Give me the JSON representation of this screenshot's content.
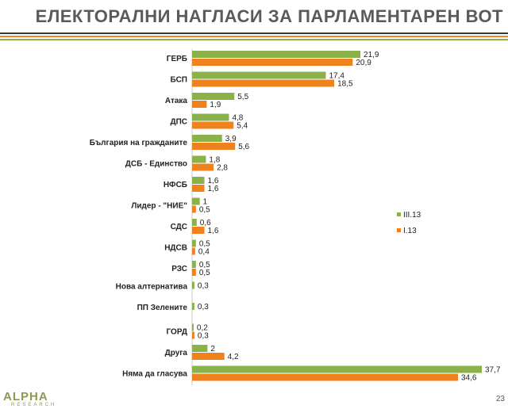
{
  "title": "ЕЛЕКТОРАЛНИ НАГЛАСИ ЗА ПАРЛАМЕНТАРЕН ВОТ",
  "logo": {
    "name": "ALPHA",
    "sub": "RESEARCH"
  },
  "page_number": "23",
  "colors": {
    "series1": "#8bb14a",
    "series2": "#f0821e",
    "rule": "#3a3a3a"
  },
  "chart_data": {
    "type": "bar",
    "orientation": "horizontal",
    "title": "",
    "xlabel": "",
    "ylabel": "",
    "xlim": [
      0,
      37.7
    ],
    "grid": false,
    "legend": "right",
    "categories": [
      "ГЕРБ",
      "БСП",
      "Атака",
      "ДПС",
      "България на гражданите",
      "ДСБ - Единство",
      "НФСБ",
      "Лидер - \"НИЕ\"",
      "СДС",
      "НДСВ",
      "РЗС",
      "Нова алтернатива",
      "ПП Зелените",
      "ГОРД",
      "Друга",
      "Няма да гласува"
    ],
    "series": [
      {
        "name": "III.13",
        "values": [
          21.9,
          17.4,
          5.5,
          4.8,
          3.9,
          1.8,
          1.6,
          1,
          0.6,
          0.5,
          0.5,
          0.3,
          0.3,
          0.2,
          2,
          37.7
        ],
        "labels": [
          "21,9",
          "17,4",
          "5,5",
          "4,8",
          "3,9",
          "1,8",
          "1,6",
          "1",
          "0,6",
          "0,5",
          "0,5",
          "0,3",
          "0,3",
          "0,2",
          "2",
          "37,7"
        ]
      },
      {
        "name": "I.13",
        "values": [
          20.9,
          18.5,
          1.9,
          5.4,
          5.6,
          2.8,
          1.6,
          0.5,
          1.6,
          0.4,
          0.5,
          null,
          null,
          0.3,
          4.2,
          34.6
        ],
        "labels": [
          "20,9",
          "18,5",
          "1,9",
          "5,4",
          "5,6",
          "2,8",
          "1,6",
          "0,5",
          "1,6",
          "0,4",
          "0,5",
          null,
          null,
          "0,3",
          "4,2",
          "34,6"
        ]
      }
    ]
  }
}
